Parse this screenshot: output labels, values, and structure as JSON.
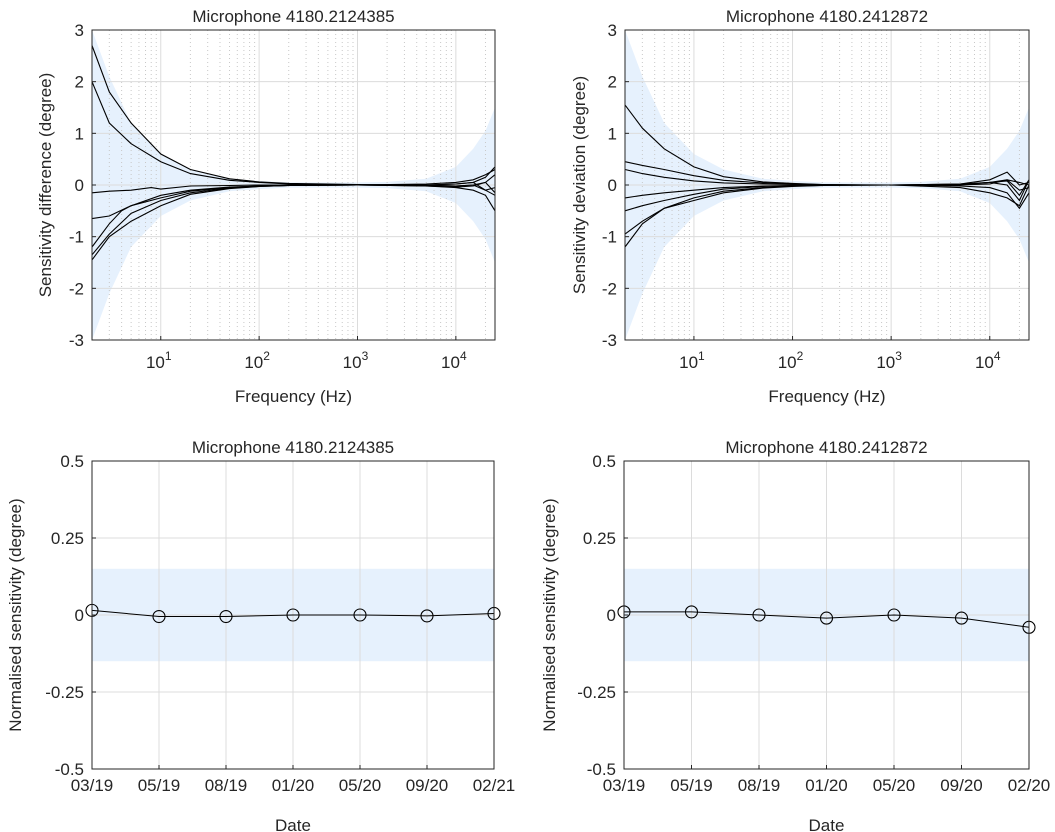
{
  "chart_data": [
    {
      "type": "line",
      "title": "Microphone 4180.2124385",
      "xlabel": "Frequency (Hz)",
      "ylabel": "Sensitivity difference (degree)",
      "xscale": "log",
      "xlim": [
        2,
        25000
      ],
      "ylim": [
        -3,
        3
      ],
      "yticks": [
        "-3",
        "-2",
        "-1",
        "0",
        "1",
        "2",
        "3"
      ],
      "xticks": [
        {
          "base": "10",
          "exp": "1"
        },
        {
          "base": "10",
          "exp": "2"
        },
        {
          "base": "10",
          "exp": "3"
        },
        {
          "base": "10",
          "exp": "4"
        }
      ],
      "grid": true,
      "band_color": "#e6f1fd",
      "line_color": "#000000",
      "tolerance_band": {
        "x": [
          2,
          3,
          5,
          10,
          20,
          50,
          100,
          200,
          500,
          1000,
          2000,
          5000,
          10000,
          15000,
          20000,
          25000
        ],
        "upper": [
          3.0,
          2.1,
          1.2,
          0.6,
          0.3,
          0.12,
          0.08,
          0.05,
          0.05,
          0.05,
          0.06,
          0.12,
          0.35,
          0.7,
          1.05,
          1.5
        ],
        "lower": [
          -3.0,
          -2.1,
          -1.2,
          -0.6,
          -0.3,
          -0.12,
          -0.08,
          -0.05,
          -0.05,
          -0.05,
          -0.06,
          -0.12,
          -0.35,
          -0.7,
          -1.05,
          -1.5
        ]
      },
      "series": [
        {
          "x": [
            2,
            3,
            5,
            10,
            20,
            50,
            100,
            200,
            500,
            1000,
            5000,
            10000,
            15000,
            20000,
            25000
          ],
          "y": [
            2.7,
            1.8,
            1.2,
            0.6,
            0.3,
            0.12,
            0.06,
            0.03,
            0.02,
            0.01,
            0.0,
            0.02,
            0.05,
            0.15,
            0.35
          ]
        },
        {
          "x": [
            2,
            3,
            5,
            10,
            20,
            50,
            100,
            200,
            500,
            1000,
            5000,
            10000,
            15000,
            20000,
            25000
          ],
          "y": [
            2.0,
            1.2,
            0.8,
            0.45,
            0.22,
            0.09,
            0.05,
            0.02,
            0.01,
            0.0,
            0.0,
            -0.02,
            0.0,
            0.05,
            0.2
          ]
        },
        {
          "x": [
            2,
            3,
            5,
            8,
            10,
            20,
            50,
            100,
            200,
            1000,
            5000,
            10000,
            15000,
            20000,
            25000
          ],
          "y": [
            -0.15,
            -0.12,
            -0.1,
            -0.05,
            -0.08,
            -0.02,
            -0.01,
            0.0,
            0.0,
            0.0,
            0.0,
            0.02,
            0.05,
            -0.1,
            -0.05
          ]
        },
        {
          "x": [
            2,
            3,
            5,
            10,
            20,
            50,
            100,
            200,
            1000,
            5000,
            10000,
            15000,
            20000,
            25000
          ],
          "y": [
            -0.65,
            -0.6,
            -0.4,
            -0.2,
            -0.1,
            -0.04,
            -0.02,
            -0.01,
            0.0,
            -0.02,
            -0.05,
            -0.1,
            -0.2,
            -0.5
          ]
        },
        {
          "x": [
            2,
            3,
            4,
            5,
            10,
            20,
            50,
            100,
            200,
            1000,
            5000,
            10000,
            15000,
            20000,
            25000
          ],
          "y": [
            -1.2,
            -0.75,
            -0.5,
            -0.4,
            -0.25,
            -0.12,
            -0.05,
            -0.02,
            -0.01,
            0.0,
            0.02,
            0.05,
            0.1,
            0.2,
            0.3
          ]
        },
        {
          "x": [
            2,
            3,
            5,
            10,
            20,
            50,
            100,
            200,
            1000,
            5000,
            10000,
            15000,
            20000,
            25000
          ],
          "y": [
            -1.35,
            -0.95,
            -0.55,
            -0.3,
            -0.15,
            -0.06,
            -0.03,
            -0.01,
            0.0,
            -0.02,
            -0.04,
            -0.02,
            0.05,
            -0.15
          ]
        },
        {
          "x": [
            2,
            3,
            5,
            10,
            20,
            50,
            100,
            200,
            1000,
            5000,
            10000,
            15000,
            20000,
            25000
          ],
          "y": [
            -1.45,
            -1.0,
            -0.7,
            -0.4,
            -0.18,
            -0.07,
            -0.03,
            -0.01,
            0.0,
            -0.01,
            -0.02,
            0.0,
            -0.1,
            -0.2
          ]
        }
      ]
    },
    {
      "type": "line",
      "title": "Microphone 4180.2412872",
      "xlabel": "Frequency (Hz)",
      "ylabel": "Sensitivity deviation (degree)",
      "xscale": "log",
      "xlim": [
        2,
        25000
      ],
      "ylim": [
        -3,
        3
      ],
      "yticks": [
        "-3",
        "-2",
        "-1",
        "0",
        "1",
        "2",
        "3"
      ],
      "xticks": [
        {
          "base": "10",
          "exp": "1"
        },
        {
          "base": "10",
          "exp": "2"
        },
        {
          "base": "10",
          "exp": "3"
        },
        {
          "base": "10",
          "exp": "4"
        }
      ],
      "grid": true,
      "band_color": "#e6f1fd",
      "line_color": "#000000",
      "tolerance_band": {
        "x": [
          2,
          3,
          5,
          10,
          20,
          50,
          100,
          200,
          500,
          1000,
          2000,
          5000,
          10000,
          15000,
          20000,
          25000
        ],
        "upper": [
          3.0,
          2.1,
          1.2,
          0.6,
          0.3,
          0.12,
          0.08,
          0.05,
          0.05,
          0.05,
          0.06,
          0.12,
          0.35,
          0.7,
          1.05,
          1.5
        ],
        "lower": [
          -3.0,
          -2.1,
          -1.2,
          -0.6,
          -0.3,
          -0.12,
          -0.08,
          -0.05,
          -0.05,
          -0.05,
          -0.06,
          -0.12,
          -0.35,
          -0.7,
          -1.05,
          -1.5
        ]
      },
      "series": [
        {
          "x": [
            2,
            3,
            5,
            10,
            20,
            50,
            100,
            200,
            500,
            1000,
            5000,
            10000,
            15000,
            20000,
            25000
          ],
          "y": [
            1.55,
            1.1,
            0.7,
            0.35,
            0.16,
            0.06,
            0.03,
            0.01,
            0.0,
            0.0,
            0.02,
            0.05,
            0.1,
            0.05,
            0.0
          ]
        },
        {
          "x": [
            2,
            3,
            5,
            10,
            20,
            50,
            100,
            200,
            1000,
            5000,
            10000,
            15000,
            20000,
            25000
          ],
          "y": [
            0.45,
            0.38,
            0.3,
            0.18,
            0.09,
            0.04,
            0.02,
            0.01,
            0.0,
            0.01,
            0.05,
            0.08,
            -0.2,
            0.1
          ]
        },
        {
          "x": [
            2,
            3,
            5,
            10,
            20,
            50,
            100,
            200,
            1000,
            5000,
            10000,
            15000,
            20000,
            25000
          ],
          "y": [
            0.3,
            0.22,
            0.15,
            0.08,
            0.04,
            0.02,
            0.01,
            0.0,
            0.0,
            0.02,
            0.1,
            0.25,
            0.0,
            0.05
          ]
        },
        {
          "x": [
            2,
            3,
            5,
            10,
            20,
            50,
            100,
            200,
            1000,
            5000,
            10000,
            15000,
            20000,
            25000
          ],
          "y": [
            -0.25,
            -0.2,
            -0.15,
            -0.1,
            -0.05,
            -0.02,
            -0.01,
            0.0,
            0.0,
            -0.02,
            -0.05,
            -0.15,
            -0.45,
            -0.15
          ]
        },
        {
          "x": [
            2,
            3,
            5,
            10,
            20,
            50,
            100,
            200,
            1000,
            5000,
            10000,
            15000,
            20000,
            25000
          ],
          "y": [
            -0.5,
            -0.4,
            -0.3,
            -0.18,
            -0.08,
            -0.03,
            -0.01,
            0.0,
            0.0,
            0.0,
            0.02,
            0.1,
            -0.1,
            -0.05
          ]
        },
        {
          "x": [
            2,
            3,
            5,
            10,
            20,
            50,
            100,
            200,
            1000,
            5000,
            10000,
            15000,
            20000,
            25000
          ],
          "y": [
            -0.95,
            -0.7,
            -0.45,
            -0.25,
            -0.12,
            -0.05,
            -0.02,
            -0.01,
            0.0,
            0.0,
            0.05,
            0.0,
            -0.3,
            0.1
          ]
        },
        {
          "x": [
            2,
            3,
            5,
            10,
            20,
            50,
            100,
            200,
            1000,
            5000,
            10000,
            15000,
            20000,
            25000
          ],
          "y": [
            -1.2,
            -0.75,
            -0.45,
            -0.3,
            -0.15,
            -0.06,
            -0.03,
            -0.01,
            0.0,
            -0.05,
            -0.15,
            -0.25,
            -0.4,
            0.0
          ]
        }
      ]
    },
    {
      "type": "line",
      "title": "Microphone 4180.2124385",
      "xlabel": "Date",
      "ylabel": "Normalised sensitivity (degree)",
      "categories": [
        "03/19",
        "05/19",
        "08/19",
        "01/20",
        "05/20",
        "09/20",
        "02/21"
      ],
      "ylim": [
        -0.5,
        0.5
      ],
      "yticks": [
        "-0.5",
        "-0.25",
        "0",
        "0.25",
        "0.5"
      ],
      "grid": true,
      "band": [
        -0.15,
        0.15
      ],
      "band_color": "#e6f1fd",
      "marker": "open-circle",
      "series": [
        {
          "values": [
            0.015,
            -0.005,
            -0.005,
            0.0,
            0.0,
            -0.003,
            0.005
          ]
        }
      ]
    },
    {
      "type": "line",
      "title": "Microphone 4180.2412872",
      "xlabel": "Date",
      "ylabel": "Normalised sensitivity (degree)",
      "categories": [
        "03/19",
        "05/19",
        "08/19",
        "01/20",
        "05/20",
        "09/20",
        "02/20"
      ],
      "ylim": [
        -0.5,
        0.5
      ],
      "yticks": [
        "-0.5",
        "-0.25",
        "0",
        "0.25",
        "0.5"
      ],
      "grid": true,
      "band": [
        -0.15,
        0.15
      ],
      "band_color": "#e6f1fd",
      "marker": "open-circle",
      "series": [
        {
          "values": [
            0.01,
            0.01,
            0.0,
            -0.01,
            0.0,
            -0.01,
            -0.04
          ]
        }
      ]
    }
  ]
}
